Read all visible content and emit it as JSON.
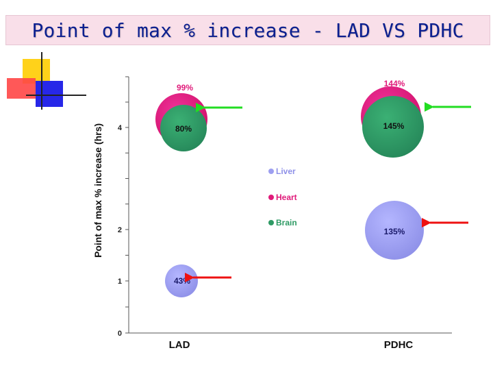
{
  "slide": {
    "title": "Point of max % increase - LAD VS PDHC"
  },
  "chart_data": {
    "type": "scatter",
    "title": "Point of max % increase - LAD VS PDHC",
    "xlabel": "",
    "ylabel": "Point of max % increase (hrs)",
    "categories": [
      "LAD",
      "PDHC"
    ],
    "ylim": [
      0,
      5
    ],
    "yticks": [
      0,
      1,
      2,
      4
    ],
    "series": [
      {
        "name": "Liver",
        "color": "#9d9ff0",
        "points": [
          {
            "x": "LAD",
            "y": 1.0,
            "label": "43%"
          },
          {
            "x": "PDHC",
            "y": 2.0,
            "label": "135%"
          }
        ]
      },
      {
        "name": "Heart",
        "color": "#e01b7a",
        "points": [
          {
            "x": "LAD",
            "y": 4.2,
            "label": "99%"
          },
          {
            "x": "PDHC",
            "y": 4.4,
            "label": "144%"
          }
        ]
      },
      {
        "name": "Brain",
        "color": "#2e9a64",
        "points": [
          {
            "x": "LAD",
            "y": 4.0,
            "label": "80%"
          },
          {
            "x": "PDHC",
            "y": 4.0,
            "label": "145%"
          }
        ]
      }
    ],
    "legend": {
      "position": "center",
      "entries": [
        "Liver",
        "Heart",
        "Brain"
      ]
    },
    "annotations": [
      {
        "type": "arrow",
        "color": "#22dd22",
        "target": "LAD Heart/Brain"
      },
      {
        "type": "arrow",
        "color": "#22dd22",
        "target": "PDHC Heart/Brain"
      },
      {
        "type": "arrow",
        "color": "#ee1111",
        "target": "LAD Liver"
      },
      {
        "type": "arrow",
        "color": "#ee1111",
        "target": "PDHC Liver"
      }
    ]
  }
}
